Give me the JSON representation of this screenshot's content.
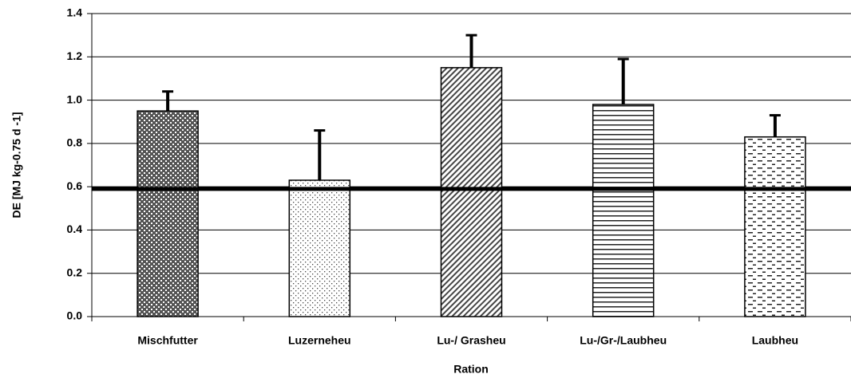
{
  "chart_data": {
    "type": "bar",
    "x_label": "Ration",
    "y_label": "DE [MJ kg-0.75 d -1]",
    "categories": [
      "Mischfutter",
      "Luzerneheu",
      "Lu-/ Grasheu",
      "Lu-/Gr-/Laubheu",
      "Laubheu"
    ],
    "values": [
      0.95,
      0.63,
      1.15,
      0.98,
      0.83
    ],
    "errors": [
      0.09,
      0.23,
      0.15,
      0.21,
      0.1
    ],
    "patterns": [
      "checker",
      "dots",
      "diagonal",
      "horizontal",
      "dashes"
    ],
    "color": "#000000",
    "reference_line": 0.59,
    "ylim": [
      0,
      1.4
    ],
    "yticks": [
      {
        "value": 0,
        "label": "0.0"
      },
      0.2,
      0.4,
      0.6,
      0.8,
      {
        "value": 1,
        "label": "1.0"
      },
      1.2,
      1.4
    ],
    "grid": true
  }
}
